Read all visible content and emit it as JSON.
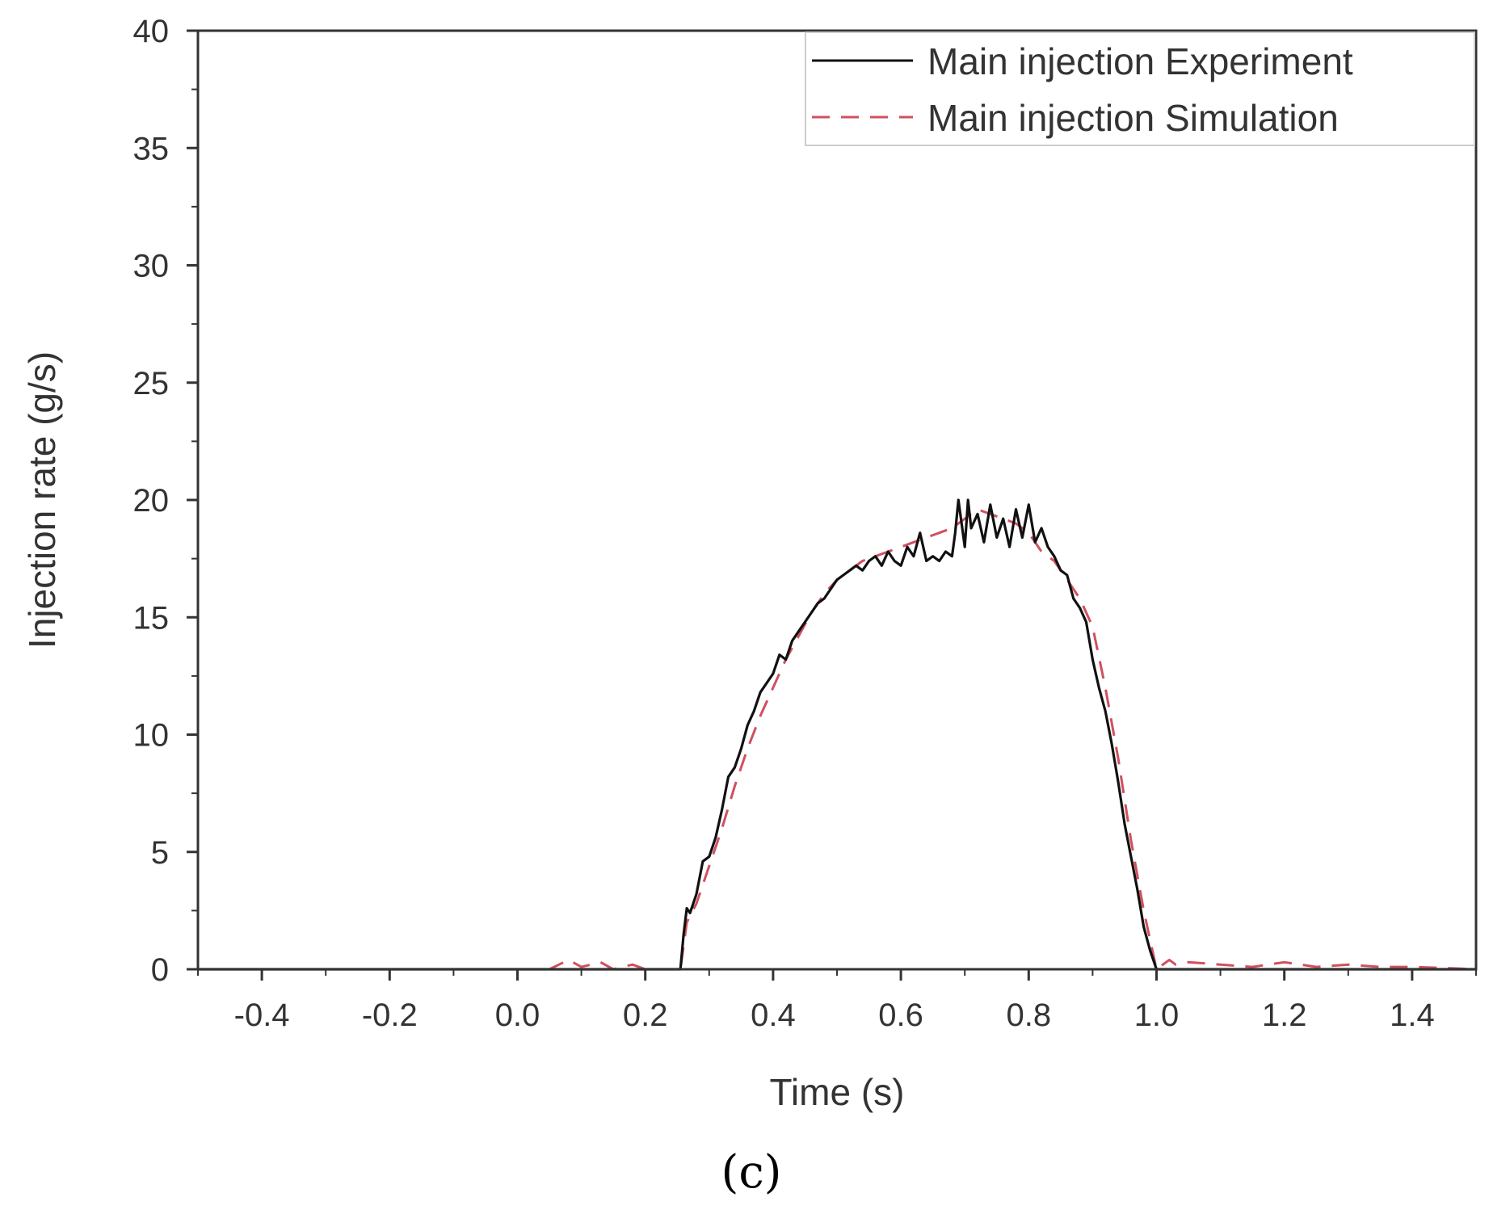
{
  "chart_data": {
    "type": "line",
    "title": "",
    "xlabel": "Time (s)",
    "ylabel": "Injection rate (g/s)",
    "xlim": [
      -0.5,
      1.5
    ],
    "ylim": [
      0,
      40
    ],
    "x_ticks": [
      -0.4,
      -0.2,
      0.0,
      0.2,
      0.4,
      0.6,
      0.8,
      1.0,
      1.2,
      1.4
    ],
    "x_tick_labels": [
      "-0.4",
      "-0.2",
      "0.0",
      "0.2",
      "0.4",
      "0.6",
      "0.8",
      "1.0",
      "1.2",
      "1.4"
    ],
    "y_ticks": [
      0,
      5,
      10,
      15,
      20,
      25,
      30,
      35,
      40
    ],
    "y_tick_labels": [
      "0",
      "5",
      "10",
      "15",
      "20",
      "25",
      "30",
      "35",
      "40"
    ],
    "grid": false,
    "legend_position": "top-right",
    "panel_label": "(c)",
    "series": [
      {
        "name": "Main injection Experiment",
        "color": "#111111",
        "dash": "solid",
        "x": [
          -0.5,
          0.255,
          0.26,
          0.265,
          0.27,
          0.28,
          0.29,
          0.3,
          0.31,
          0.32,
          0.33,
          0.34,
          0.35,
          0.36,
          0.37,
          0.38,
          0.39,
          0.4,
          0.41,
          0.42,
          0.43,
          0.44,
          0.45,
          0.46,
          0.47,
          0.48,
          0.49,
          0.5,
          0.51,
          0.52,
          0.53,
          0.54,
          0.55,
          0.56,
          0.57,
          0.58,
          0.59,
          0.6,
          0.61,
          0.62,
          0.63,
          0.64,
          0.65,
          0.66,
          0.67,
          0.68,
          0.685,
          0.69,
          0.7,
          0.705,
          0.71,
          0.72,
          0.73,
          0.74,
          0.75,
          0.76,
          0.77,
          0.78,
          0.79,
          0.8,
          0.81,
          0.82,
          0.83,
          0.84,
          0.85,
          0.86,
          0.87,
          0.88,
          0.89,
          0.9,
          0.91,
          0.92,
          0.93,
          0.94,
          0.95,
          0.96,
          0.97,
          0.98,
          0.99,
          1.0,
          1.5
        ],
        "y": [
          0,
          0,
          1.5,
          2.6,
          2.4,
          3.2,
          4.6,
          4.8,
          5.6,
          6.8,
          8.2,
          8.6,
          9.4,
          10.4,
          11.0,
          11.8,
          12.2,
          12.6,
          13.4,
          13.2,
          14.0,
          14.4,
          14.8,
          15.2,
          15.6,
          15.8,
          16.2,
          16.6,
          16.8,
          17.0,
          17.2,
          17.0,
          17.4,
          17.6,
          17.2,
          17.8,
          17.4,
          17.2,
          18.0,
          17.6,
          18.6,
          17.4,
          17.6,
          17.4,
          17.8,
          17.6,
          18.6,
          20.0,
          18.0,
          20.0,
          18.8,
          19.4,
          18.2,
          19.8,
          18.4,
          19.2,
          18.0,
          19.6,
          18.4,
          19.8,
          18.2,
          18.8,
          18.0,
          17.6,
          17.0,
          16.8,
          15.8,
          15.4,
          14.8,
          13.2,
          12.0,
          11.0,
          9.6,
          8.0,
          6.2,
          4.8,
          3.4,
          1.8,
          0.8,
          0,
          0
        ]
      },
      {
        "name": "Main injection Simulation",
        "color": "#d05060",
        "dash": "dashed",
        "x": [
          -0.5,
          0.05,
          0.08,
          0.1,
          0.13,
          0.15,
          0.18,
          0.2,
          0.255,
          0.265,
          0.28,
          0.3,
          0.32,
          0.34,
          0.36,
          0.38,
          0.4,
          0.42,
          0.44,
          0.46,
          0.48,
          0.5,
          0.52,
          0.54,
          0.56,
          0.58,
          0.6,
          0.62,
          0.64,
          0.66,
          0.68,
          0.7,
          0.72,
          0.74,
          0.76,
          0.78,
          0.8,
          0.82,
          0.84,
          0.86,
          0.88,
          0.9,
          0.92,
          0.94,
          0.96,
          0.98,
          1.0,
          1.02,
          1.03,
          1.05,
          1.1,
          1.15,
          1.2,
          1.25,
          1.3,
          1.35,
          1.4,
          1.45,
          1.5
        ],
        "y": [
          0,
          0,
          0.4,
          0.1,
          0.3,
          0.0,
          0.2,
          0,
          0,
          2.0,
          2.8,
          4.4,
          6.0,
          7.8,
          9.4,
          10.8,
          12.0,
          13.2,
          14.2,
          15.2,
          16.0,
          16.6,
          17.0,
          17.4,
          17.6,
          17.8,
          18.0,
          18.2,
          18.4,
          18.6,
          18.8,
          19.2,
          19.6,
          19.4,
          19.2,
          19.0,
          18.6,
          17.8,
          17.4,
          16.6,
          15.8,
          14.6,
          12.0,
          9.0,
          5.5,
          2.5,
          0,
          0.4,
          0.2,
          0.3,
          0.2,
          0.1,
          0.3,
          0.1,
          0.2,
          0.1,
          0.1,
          0.05,
          0
        ]
      }
    ]
  }
}
